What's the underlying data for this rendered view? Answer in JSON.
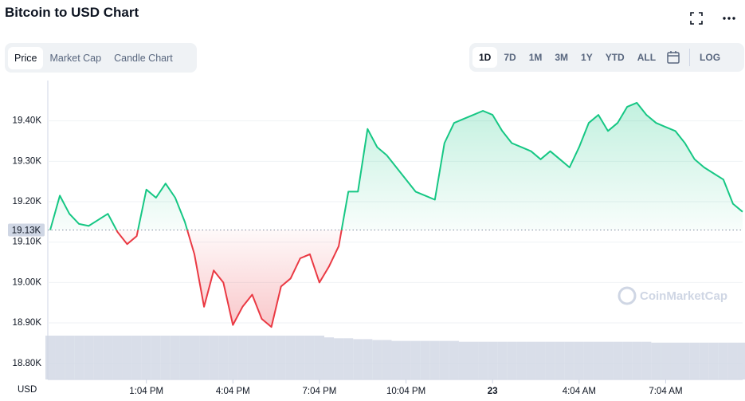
{
  "header": {
    "title": "Bitcoin to USD Chart"
  },
  "tabs": [
    "Price",
    "Market Cap",
    "Candle Chart"
  ],
  "ranges": [
    "1D",
    "7D",
    "1M",
    "3M",
    "1Y",
    "YTD",
    "ALL"
  ],
  "log_label": "LOG",
  "watermark": "CoinMarketCap",
  "chart_data": {
    "type": "line",
    "y_unit_label": "USD",
    "up_color": "#16c784",
    "down_color": "#ea3943",
    "volume_color": "#cfd6e4",
    "baseline": {
      "value": 19130,
      "label": "19.13K"
    },
    "xlim": [
      0,
      72
    ],
    "xticks": [
      {
        "value": 10,
        "label": "1:04 PM"
      },
      {
        "value": 19,
        "label": "4:04 PM"
      },
      {
        "value": 28,
        "label": "7:04 PM"
      },
      {
        "value": 37,
        "label": "10:04 PM"
      },
      {
        "value": 46,
        "label": "23"
      },
      {
        "value": 55,
        "label": "4:04 AM"
      },
      {
        "value": 64,
        "label": "7:04 AM"
      }
    ],
    "ylim": [
      18760,
      19500
    ],
    "yticks": [
      {
        "value": 18800,
        "label": "18.80K"
      },
      {
        "value": 18900,
        "label": "18.90K"
      },
      {
        "value": 19000,
        "label": "19.00K"
      },
      {
        "value": 19100,
        "label": "19.10K"
      },
      {
        "value": 19200,
        "label": "19.20K"
      },
      {
        "value": 19300,
        "label": "19.30K"
      },
      {
        "value": 19400,
        "label": "19.40K"
      }
    ],
    "grid": true,
    "values": [
      19130,
      19215,
      19170,
      19145,
      19140,
      19155,
      19170,
      19125,
      19095,
      19115,
      19230,
      19210,
      19245,
      19210,
      19150,
      19070,
      18940,
      19030,
      19000,
      18895,
      18940,
      18970,
      18910,
      18890,
      18990,
      19010,
      19060,
      19070,
      19000,
      19040,
      19090,
      19225,
      19225,
      19380,
      19335,
      19315,
      19285,
      19255,
      19225,
      19215,
      19205,
      19345,
      19395,
      19405,
      19415,
      19425,
      19415,
      19375,
      19345,
      19335,
      19325,
      19305,
      19325,
      19305,
      19285,
      19335,
      19395,
      19415,
      19375,
      19395,
      19435,
      19445,
      19415,
      19395,
      19385,
      19375,
      19345,
      19305,
      19285,
      19270,
      19255,
      19195,
      19175
    ],
    "volume_lim": [
      0,
      100
    ],
    "volume": [
      50,
      50,
      50,
      50,
      50,
      50,
      50,
      50,
      50,
      50,
      50,
      50,
      50,
      50,
      50,
      50,
      50,
      50,
      50,
      50,
      50,
      50,
      50,
      50,
      50,
      50,
      50,
      50,
      50,
      48,
      47,
      47,
      46,
      46,
      45,
      45,
      44,
      44,
      44,
      44,
      44,
      44,
      44,
      43,
      43,
      43,
      43,
      43,
      43,
      43,
      43,
      43,
      43,
      43,
      43,
      43,
      43,
      43,
      43,
      43,
      43,
      43,
      43,
      42,
      42,
      42,
      42,
      42,
      42,
      42,
      42,
      42,
      42
    ]
  }
}
